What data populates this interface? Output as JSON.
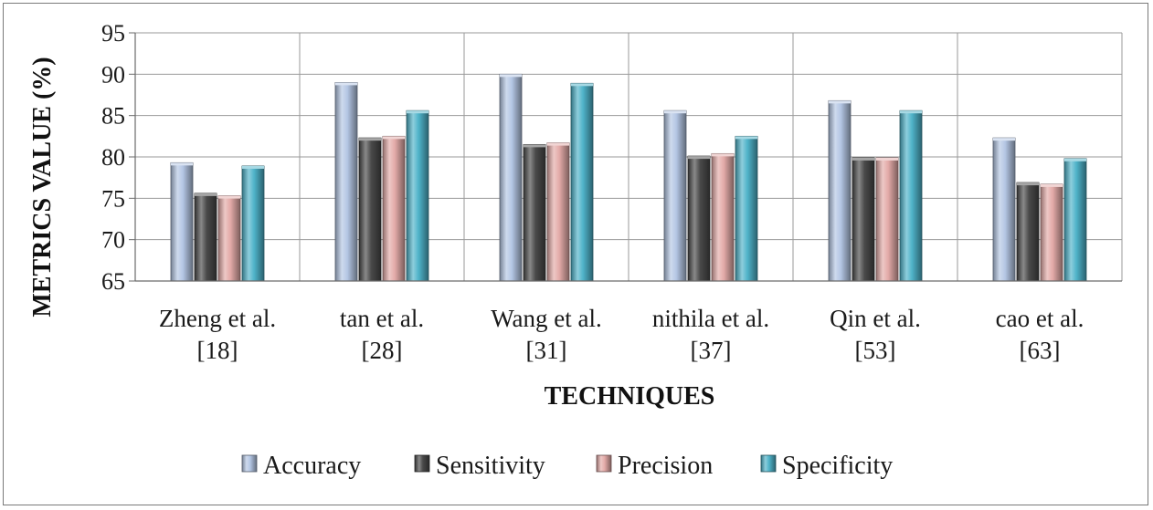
{
  "chart_data": {
    "type": "bar",
    "title": "",
    "xlabel": "TECHNIQUES",
    "ylabel": "METRICS VALUE (%)",
    "ylim": [
      65,
      95
    ],
    "yticks": [
      "65",
      "70",
      "75",
      "80",
      "85",
      "90",
      "95"
    ],
    "grid": true,
    "legend_position": "bottom",
    "categories": [
      {
        "line1": "Zheng et al.",
        "line2": "[18]"
      },
      {
        "line1": "tan et al.",
        "line2": "[28]"
      },
      {
        "line1": "Wang et al.",
        "line2": "[31]"
      },
      {
        "line1": "nithila et al.",
        "line2": "[37]"
      },
      {
        "line1": "Qin et al.",
        "line2": "[53]"
      },
      {
        "line1": "cao et al.",
        "line2": "[63]"
      }
    ],
    "series": [
      {
        "name": "Accuracy",
        "color": "#b4c6e4",
        "values": [
          79.3,
          89.0,
          90.0,
          85.6,
          86.8,
          82.3
        ]
      },
      {
        "name": "Sensitivity",
        "color": "#4a4a4a",
        "values": [
          75.6,
          82.3,
          81.5,
          80.1,
          79.9,
          76.9
        ]
      },
      {
        "name": "Precision",
        "color": "#e3aaa8",
        "values": [
          75.3,
          82.5,
          81.7,
          80.4,
          79.9,
          76.7
        ]
      },
      {
        "name": "Specificity",
        "color": "#4fb3c9",
        "values": [
          78.9,
          85.6,
          88.9,
          82.5,
          85.6,
          79.8
        ]
      }
    ]
  }
}
